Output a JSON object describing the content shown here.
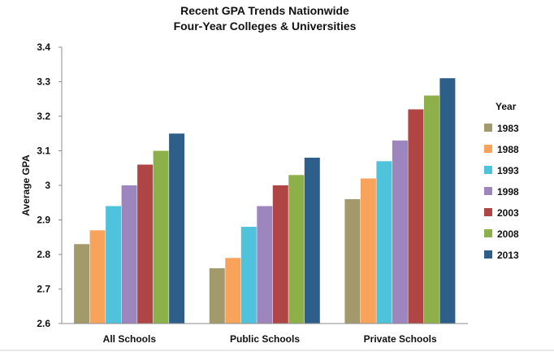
{
  "chart_data": {
    "type": "bar",
    "title": "Recent GPA Trends Nationwide",
    "subtitle": "Four-Year Colleges & Universities",
    "xlabel": "",
    "ylabel": "Average GPA",
    "ylim": [
      2.6,
      3.4
    ],
    "yticks": [
      2.6,
      2.7,
      2.8,
      2.9,
      3,
      3.1,
      3.2,
      3.3,
      3.4
    ],
    "ytick_labels": [
      "2.6",
      "2.7",
      "2.8",
      "2.9",
      "3",
      "3.1",
      "3.2",
      "3.3",
      "3.4"
    ],
    "categories": [
      "All Schools",
      "Public Schools",
      "Private Schools"
    ],
    "legend_title": "Year",
    "legend_position": "right",
    "grid": false,
    "series": [
      {
        "name": "1983",
        "color": "#a39a6c",
        "values": [
          2.83,
          2.76,
          2.96
        ]
      },
      {
        "name": "1988",
        "color": "#f7a35c",
        "values": [
          2.87,
          2.79,
          3.02
        ]
      },
      {
        "name": "1993",
        "color": "#4fc3dc",
        "values": [
          2.94,
          2.88,
          3.07
        ]
      },
      {
        "name": "1998",
        "color": "#9d86bd",
        "values": [
          3.0,
          2.94,
          3.13
        ]
      },
      {
        "name": "2003",
        "color": "#b04545",
        "values": [
          3.06,
          3.0,
          3.22
        ]
      },
      {
        "name": "2008",
        "color": "#8db04a",
        "values": [
          3.1,
          3.03,
          3.26
        ]
      },
      {
        "name": "2013",
        "color": "#2e5f8a",
        "values": [
          3.15,
          3.08,
          3.31
        ]
      }
    ]
  }
}
